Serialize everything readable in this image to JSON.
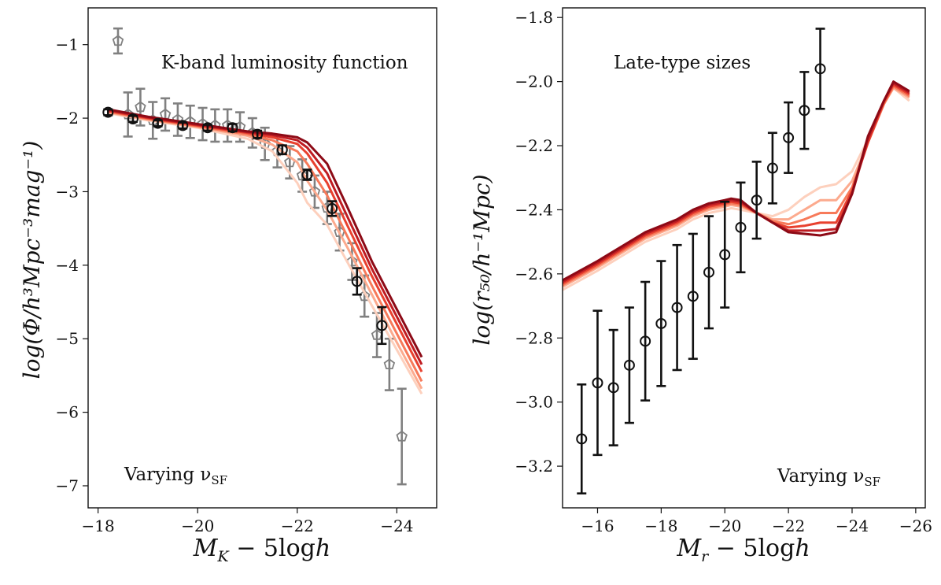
{
  "chart_data": [
    {
      "type": "line",
      "legend_label": "K-band luminosity function",
      "annotation": "Varying ν",
      "annotation_sub": "SF",
      "xlabel_main": "M",
      "xlabel_sub": "K",
      "xlabel_rest": " − 5log",
      "xlabel_h": "h",
      "ylabel": "log(Φ/h³Mpc⁻³mag⁻¹)",
      "xlim": [
        -17.8,
        -24.8
      ],
      "ylim": [
        -7.3,
        -0.5
      ],
      "xticks": [
        -18,
        -20,
        -22,
        -24
      ],
      "xtick_labels": [
        "−18",
        "−20",
        "−22",
        "−24"
      ],
      "yticks": [
        -7,
        -6,
        -5,
        -4,
        -3,
        -2,
        -1
      ],
      "ytick_labels": [
        "−7",
        "−6",
        "−5",
        "−4",
        "−3",
        "−2",
        "−1"
      ],
      "model_x": [
        -18.2,
        -19.0,
        -20.0,
        -21.0,
        -21.5,
        -22.0,
        -22.2,
        -22.6,
        -23.0,
        -23.5,
        -24.0,
        -24.5
      ],
      "series": [
        {
          "name": "model 1",
          "color": "#fdd0bd",
          "values": [
            -1.93,
            -2.03,
            -2.13,
            -2.28,
            -2.45,
            -2.88,
            -3.15,
            -3.45,
            -3.95,
            -4.55,
            -5.15,
            -5.75
          ]
        },
        {
          "name": "model 2",
          "color": "#fcaa8e",
          "values": [
            -1.92,
            -2.02,
            -2.12,
            -2.24,
            -2.36,
            -2.6,
            -2.85,
            -3.25,
            -3.75,
            -4.4,
            -5.05,
            -5.68
          ]
        },
        {
          "name": "model 3",
          "color": "#f77a5a",
          "values": [
            -1.91,
            -2.01,
            -2.11,
            -2.22,
            -2.3,
            -2.45,
            -2.62,
            -3.05,
            -3.6,
            -4.28,
            -4.93,
            -5.58
          ]
        },
        {
          "name": "model 4",
          "color": "#e8412f",
          "values": [
            -1.9,
            -2.0,
            -2.1,
            -2.2,
            -2.26,
            -2.35,
            -2.48,
            -2.88,
            -3.45,
            -4.15,
            -4.8,
            -5.45
          ]
        },
        {
          "name": "model 5",
          "color": "#bf1c22",
          "values": [
            -1.89,
            -1.99,
            -2.09,
            -2.19,
            -2.23,
            -2.3,
            -2.4,
            -2.75,
            -3.33,
            -4.05,
            -4.7,
            -5.35
          ]
        },
        {
          "name": "model 6",
          "color": "#8d0a16",
          "values": [
            -1.88,
            -1.98,
            -2.08,
            -2.18,
            -2.21,
            -2.26,
            -2.33,
            -2.62,
            -3.2,
            -3.95,
            -4.6,
            -5.25
          ]
        }
      ],
      "obs_grey": {
        "x": [
          -18.6,
          -18.85,
          -19.1,
          -19.35,
          -19.6,
          -19.85,
          -20.1,
          -20.35,
          -20.6,
          -20.85,
          -21.1,
          -21.35,
          -21.6,
          -21.85,
          -22.1,
          -22.35,
          -22.6,
          -22.85,
          -23.1,
          -23.35,
          -23.6,
          -23.85,
          -24.1
        ],
        "y": [
          -1.95,
          -1.85,
          -2.03,
          -1.95,
          -2.02,
          -2.05,
          -2.08,
          -2.1,
          -2.1,
          -2.12,
          -2.2,
          -2.35,
          -2.45,
          -2.6,
          -2.78,
          -3.0,
          -3.22,
          -3.55,
          -3.95,
          -4.42,
          -4.95,
          -5.35,
          -6.33
        ],
        "err": [
          0.3,
          0.25,
          0.25,
          0.22,
          0.22,
          0.22,
          0.22,
          0.22,
          0.22,
          0.2,
          0.2,
          0.22,
          0.22,
          0.22,
          0.22,
          0.22,
          0.22,
          0.25,
          0.25,
          0.28,
          0.3,
          0.35,
          0.65
        ],
        "legend_x": -18.4,
        "legend_y": -0.95,
        "legend_err": 0.17
      },
      "obs_black": {
        "x": [
          -18.2,
          -18.7,
          -19.2,
          -19.7,
          -20.2,
          -20.7,
          -21.2,
          -21.7,
          -22.2,
          -22.7,
          -23.2,
          -23.7
        ],
        "y": [
          -1.92,
          -2.01,
          -2.07,
          -2.1,
          -2.13,
          -2.13,
          -2.22,
          -2.43,
          -2.77,
          -3.23,
          -4.22,
          -4.82
        ],
        "err": [
          0.04,
          0.04,
          0.04,
          0.04,
          0.04,
          0.05,
          0.05,
          0.06,
          0.07,
          0.1,
          0.18,
          0.25
        ]
      }
    },
    {
      "type": "line",
      "legend_label": "Late-type sizes",
      "annotation": "Varying ν",
      "annotation_sub": "SF",
      "xlabel_main": "M",
      "xlabel_sub": "r",
      "xlabel_rest": " − 5log",
      "xlabel_h": "h",
      "ylabel": "log(r₅₀/h⁻¹Mpc)",
      "xlim": [
        -14.9,
        -26.3
      ],
      "ylim": [
        -3.33,
        -1.77
      ],
      "xticks": [
        -16,
        -18,
        -20,
        -22,
        -24,
        -26
      ],
      "xtick_labels": [
        "−16",
        "−18",
        "−20",
        "−22",
        "−24",
        "−26"
      ],
      "yticks": [
        -3.2,
        -3.0,
        -2.8,
        -2.6,
        -2.4,
        -2.2,
        -2.0,
        -1.8
      ],
      "ytick_labels": [
        "−3.2",
        "−3.0",
        "−2.8",
        "−2.6",
        "−2.4",
        "−2.2",
        "−2.0",
        "−1.8"
      ],
      "model_x": [
        -14.9,
        -16.0,
        -17.0,
        -17.5,
        -18.0,
        -18.5,
        -19.0,
        -19.5,
        -20.0,
        -20.2,
        -20.5,
        -21.0,
        -21.5,
        -22.0,
        -22.5,
        -23.0,
        -23.5,
        -24.0,
        -24.5,
        -25.0,
        -25.3,
        -25.8
      ],
      "series": [
        {
          "name": "model 1",
          "color": "#fdd0bd",
          "values": [
            -2.65,
            -2.59,
            -2.53,
            -2.5,
            -2.48,
            -2.46,
            -2.43,
            -2.41,
            -2.4,
            -2.395,
            -2.4,
            -2.41,
            -2.42,
            -2.4,
            -2.36,
            -2.33,
            -2.32,
            -2.28,
            -2.18,
            -2.07,
            -2.02,
            -2.06
          ]
        },
        {
          "name": "model 2",
          "color": "#fcaa8e",
          "values": [
            -2.64,
            -2.58,
            -2.52,
            -2.49,
            -2.47,
            -2.45,
            -2.42,
            -2.4,
            -2.39,
            -2.385,
            -2.39,
            -2.41,
            -2.43,
            -2.43,
            -2.4,
            -2.37,
            -2.37,
            -2.31,
            -2.19,
            -2.07,
            -2.02,
            -2.05
          ]
        },
        {
          "name": "model 3",
          "color": "#f77a5a",
          "values": [
            -2.635,
            -2.575,
            -2.515,
            -2.485,
            -2.465,
            -2.445,
            -2.415,
            -2.395,
            -2.385,
            -2.38,
            -2.385,
            -2.41,
            -2.435,
            -2.445,
            -2.43,
            -2.41,
            -2.41,
            -2.33,
            -2.19,
            -2.07,
            -2.015,
            -2.045
          ]
        },
        {
          "name": "model 4",
          "color": "#e8412f",
          "values": [
            -2.63,
            -2.57,
            -2.51,
            -2.48,
            -2.46,
            -2.44,
            -2.41,
            -2.39,
            -2.38,
            -2.375,
            -2.38,
            -2.41,
            -2.44,
            -2.455,
            -2.45,
            -2.44,
            -2.44,
            -2.34,
            -2.19,
            -2.065,
            -2.01,
            -2.04
          ]
        },
        {
          "name": "model 5",
          "color": "#bf1c22",
          "values": [
            -2.625,
            -2.565,
            -2.505,
            -2.475,
            -2.455,
            -2.435,
            -2.405,
            -2.385,
            -2.375,
            -2.37,
            -2.375,
            -2.41,
            -2.44,
            -2.465,
            -2.465,
            -2.465,
            -2.46,
            -2.35,
            -2.18,
            -2.06,
            -2.005,
            -2.035
          ]
        },
        {
          "name": "model 6",
          "color": "#8d0a16",
          "values": [
            -2.62,
            -2.56,
            -2.5,
            -2.47,
            -2.45,
            -2.43,
            -2.4,
            -2.38,
            -2.37,
            -2.365,
            -2.37,
            -2.41,
            -2.44,
            -2.47,
            -2.475,
            -2.48,
            -2.47,
            -2.35,
            -2.17,
            -2.06,
            -2.0,
            -2.03
          ]
        }
      ],
      "obs_black": {
        "x": [
          -15.5,
          -16.0,
          -16.5,
          -17.0,
          -17.5,
          -18.0,
          -18.5,
          -19.0,
          -19.5,
          -20.0,
          -20.5,
          -21.0,
          -21.5,
          -22.0,
          -22.5,
          -23.0
        ],
        "y": [
          -3.115,
          -2.94,
          -2.955,
          -2.885,
          -2.81,
          -2.755,
          -2.705,
          -2.67,
          -2.595,
          -2.54,
          -2.455,
          -2.37,
          -2.27,
          -2.175,
          -2.09,
          -1.96
        ],
        "err": [
          0.17,
          0.225,
          0.18,
          0.18,
          0.185,
          0.195,
          0.195,
          0.195,
          0.175,
          0.165,
          0.14,
          0.12,
          0.11,
          0.11,
          0.12,
          0.125
        ]
      }
    }
  ]
}
